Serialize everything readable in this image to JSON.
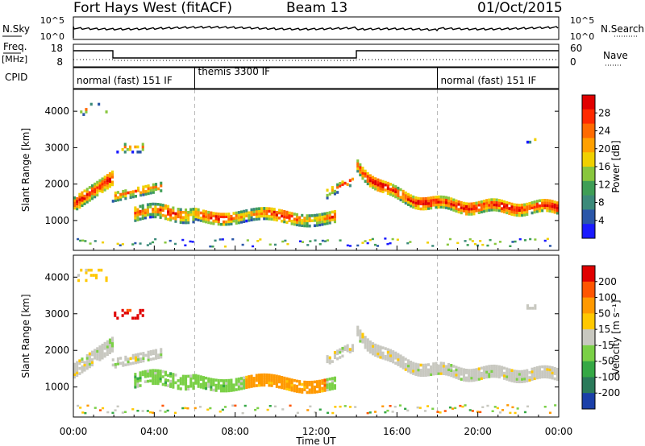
{
  "header": {
    "station": "Fort Hays West (fitACF)",
    "beam": "Beam 13",
    "date": "01/Oct/2015"
  },
  "strip": {
    "nsky_label": "N.Sky",
    "nsky_ticks": [
      "10^5",
      "10^0"
    ],
    "nsearch_label": "N.Search",
    "nsearch_ticks": [
      "10^5",
      "10^0"
    ],
    "freq_label": "Freq.",
    "freq_unit": "[MHz]",
    "freq_ticks": [
      "18",
      "8"
    ],
    "nave_label": "Nave",
    "nave_ticks": [
      "60",
      "0"
    ],
    "cpid_label": "CPID",
    "cpid_segments": [
      {
        "label": "normal (fast) 151 IF",
        "start_h": 0,
        "end_h": 6
      },
      {
        "label": "themis 3300 IF",
        "start_h": 6,
        "end_h": 18
      },
      {
        "label": "normal (fast) 151 IF",
        "start_h": 18,
        "end_h": 24
      }
    ]
  },
  "chart_data": [
    {
      "type": "heatmap",
      "name": "power",
      "ylabel": "Slant Range [km]",
      "xlim_hours": [
        0,
        24
      ],
      "ylim_km": [
        180,
        4600
      ],
      "yticks": [
        "1000",
        "2000",
        "3000",
        "4000"
      ],
      "colorbar": {
        "label": "Power [dB]",
        "ticks": [
          "4",
          "8",
          "12",
          "16",
          "20",
          "24",
          "28"
        ],
        "colors": [
          "#1a1aff",
          "#2a56a8",
          "#3c8a7a",
          "#3f9e56",
          "#88c63d",
          "#f0d000",
          "#ffa000",
          "#ff6a00",
          "#ff2a00",
          "#e00000"
        ]
      }
    },
    {
      "type": "heatmap",
      "name": "velocity",
      "ylabel": "Slant Range [km]",
      "xlabel": "Time UT",
      "xlim_hours": [
        0,
        24
      ],
      "ylim_km": [
        180,
        4600
      ],
      "yticks": [
        "1000",
        "2000",
        "3000",
        "4000"
      ],
      "xticks": [
        "00:00",
        "04:00",
        "08:00",
        "12:00",
        "16:00",
        "20:00",
        "00:00"
      ],
      "colorbar": {
        "label": "Velocity [m s⁻¹]",
        "ticks": [
          "200",
          "100",
          "50",
          "15",
          "-15",
          "-50",
          "-100",
          "-200"
        ],
        "colors": [
          "#1a3fa8",
          "#2a7a5a",
          "#35a845",
          "#7ad046",
          "#c8c8c0",
          "#ffc800",
          "#ff9900",
          "#ff5500",
          "#e00000"
        ]
      }
    }
  ]
}
